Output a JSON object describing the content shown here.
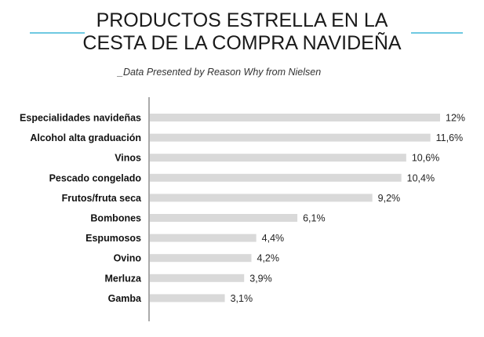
{
  "title_lines": [
    "PRODUCTOS ESTRELLA EN LA",
    "CESTA DE LA COMPRA NAVIDEÑA"
  ],
  "subtitle": "_Data Presented by Reason Why from Nielsen",
  "colors": {
    "bar": "#d9d9d9",
    "axis": "#555555",
    "highlight": "#e8448f",
    "accent_line": "#6fc9e1"
  },
  "chart_data": {
    "type": "bar",
    "orientation": "horizontal",
    "title": "PRODUCTOS ESTRELLA EN LA CESTA DE LA COMPRA NAVIDEÑA",
    "subtitle": "_Data Presented by Reason Why from Nielsen",
    "categories": [
      "Especialidades navideñas",
      "Alcohol alta graduación",
      "Vinos",
      "Pescado congelado",
      "Frutos/fruta seca",
      "Bombones",
      "Espumosos",
      "Ovino",
      "Merluza",
      "Gamba"
    ],
    "values": [
      12,
      11.6,
      10.6,
      10.4,
      9.2,
      6.1,
      4.4,
      4.2,
      3.9,
      3.1
    ],
    "value_labels": [
      "12%",
      "11,6%",
      "10,6%",
      "10,4%",
      "9,2%",
      "6,1%",
      "4,4%",
      "4,2%",
      "3,9%",
      "3,1%"
    ],
    "highlight_index": 0,
    "xlim": [
      0,
      12
    ],
    "grid": false,
    "legend": "none"
  }
}
